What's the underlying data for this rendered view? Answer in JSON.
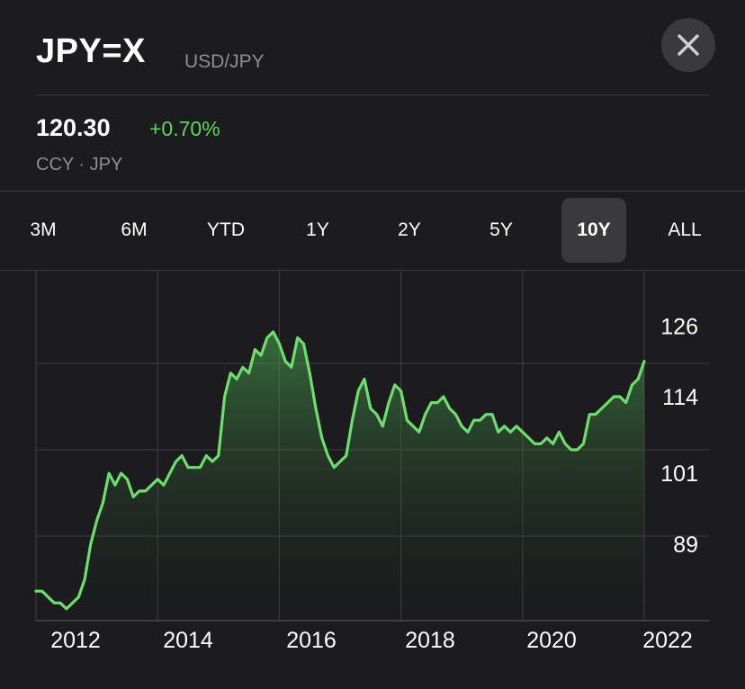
{
  "header": {
    "symbol": "JPY=X",
    "pair": "USD/JPY",
    "close_icon": "close-icon"
  },
  "quote": {
    "price": "120.30",
    "change": "+0.70%",
    "meta": "CCY · JPY"
  },
  "colors": {
    "background": "#1c1c1e",
    "line": "#6fdc6f",
    "positive": "#5fd35f",
    "muted": "#8e8e93"
  },
  "tabs": [
    {
      "label": "3M",
      "active": false
    },
    {
      "label": "6M",
      "active": false
    },
    {
      "label": "YTD",
      "active": false
    },
    {
      "label": "1Y",
      "active": false
    },
    {
      "label": "2Y",
      "active": false
    },
    {
      "label": "5Y",
      "active": false
    },
    {
      "label": "10Y",
      "active": true
    },
    {
      "label": "ALL",
      "active": false
    }
  ],
  "chart_data": {
    "type": "area",
    "y_ticks": [
      "126",
      "114",
      "101",
      "89"
    ],
    "y_tick_values": [
      126,
      114,
      101,
      89
    ],
    "x_ticks": [
      "2012",
      "2014",
      "2016",
      "2018",
      "2020",
      "2022"
    ],
    "x_tick_values": [
      2012,
      2014,
      2016,
      2018,
      2020,
      2022
    ],
    "xlim": [
      2012,
      2022
    ],
    "ylim": [
      76,
      134
    ],
    "grid": true,
    "series": [
      {
        "x": [
          2012.0,
          2012.1,
          2012.2,
          2012.3,
          2012.4,
          2012.5,
          2012.6,
          2012.7,
          2012.8,
          2012.9,
          2013.0,
          2013.1,
          2013.2,
          2013.3,
          2013.4,
          2013.5,
          2013.6,
          2013.7,
          2013.8,
          2013.9,
          2014.0,
          2014.1,
          2014.2,
          2014.3,
          2014.4,
          2014.5,
          2014.6,
          2014.7,
          2014.8,
          2014.9,
          2015.0,
          2015.1,
          2015.2,
          2015.3,
          2015.4,
          2015.5,
          2015.6,
          2015.7,
          2015.8,
          2015.9,
          2016.0,
          2016.1,
          2016.2,
          2016.3,
          2016.4,
          2016.5,
          2016.6,
          2016.7,
          2016.8,
          2016.9,
          2017.0,
          2017.1,
          2017.2,
          2017.3,
          2017.4,
          2017.5,
          2017.6,
          2017.7,
          2017.8,
          2017.9,
          2018.0,
          2018.1,
          2018.2,
          2018.3,
          2018.4,
          2018.5,
          2018.6,
          2018.7,
          2018.8,
          2018.9,
          2019.0,
          2019.1,
          2019.2,
          2019.3,
          2019.4,
          2019.5,
          2019.6,
          2019.7,
          2019.8,
          2019.9,
          2020.0,
          2020.1,
          2020.2,
          2020.3,
          2020.4,
          2020.5,
          2020.6,
          2020.7,
          2020.8,
          2020.9,
          2021.0,
          2021.1,
          2021.2,
          2021.3,
          2021.4,
          2021.5,
          2021.6,
          2021.7,
          2021.8,
          2021.9,
          2022.0
        ],
        "values": [
          81,
          81,
          80,
          79,
          79,
          78,
          79,
          80,
          83,
          89,
          93,
          96,
          101,
          99,
          101,
          100,
          97,
          98,
          98,
          99,
          100,
          99,
          101,
          103,
          104,
          102,
          102,
          102,
          104,
          103,
          104,
          114,
          118,
          117,
          119,
          118,
          122,
          121,
          124,
          125,
          123,
          120,
          119,
          124,
          123,
          118,
          112,
          107,
          104,
          102,
          103,
          104,
          110,
          115,
          117,
          112,
          111,
          109,
          113,
          116,
          115,
          110,
          109,
          108,
          111,
          113,
          113,
          114,
          112,
          111,
          109,
          108,
          110,
          110,
          111,
          111,
          108,
          109,
          108,
          109,
          108,
          107,
          106,
          106,
          107,
          106,
          108,
          106,
          105,
          105,
          106,
          111,
          111,
          112,
          113,
          114,
          114,
          113,
          116,
          117,
          120
        ]
      }
    ]
  }
}
